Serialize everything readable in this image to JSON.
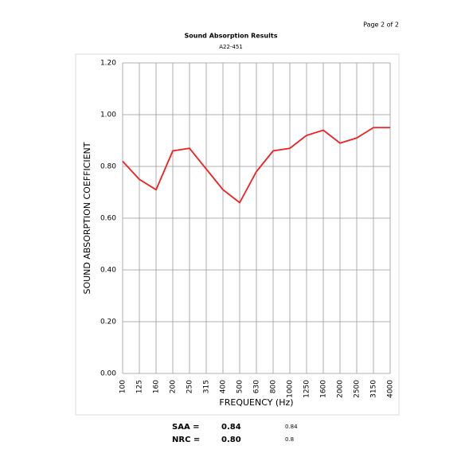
{
  "page_label": "Page 2 of 2",
  "chart_data": {
    "type": "line",
    "title": "Sound Absorption Results",
    "subtitle": "A22-451",
    "categories": [
      "100",
      "125",
      "160",
      "200",
      "250",
      "315",
      "400",
      "500",
      "630",
      "800",
      "1000",
      "1250",
      "1600",
      "2000",
      "2500",
      "3150",
      "4000"
    ],
    "values": [
      0.82,
      0.75,
      0.71,
      0.86,
      0.87,
      0.79,
      0.71,
      0.66,
      0.78,
      0.86,
      0.87,
      0.92,
      0.94,
      0.89,
      0.91,
      0.95,
      0.95
    ],
    "color": "#ee2222",
    "ylim": [
      0,
      1.2
    ],
    "yticks": [
      {
        "value": 0,
        "label": "0.00"
      },
      {
        "value": 0.2,
        "label": "0.20"
      },
      {
        "value": 0.4,
        "label": "0.40"
      },
      {
        "value": 0.6,
        "label": "0.60"
      },
      {
        "value": 0.8,
        "label": "0.80"
      },
      {
        "value": 1,
        "label": "1.00"
      },
      {
        "value": 1.2,
        "label": "1.20"
      }
    ],
    "grid": true,
    "xlabel": "FREQUENCY (Hz)",
    "ylabel": "SOUND ABSORPTION COEFFICIENT"
  },
  "summary": [
    {
      "label": "SAA =",
      "value": "0.84",
      "raw": 0.84
    },
    {
      "label": "NRC =",
      "value": "0.80",
      "raw": 0.8
    }
  ]
}
